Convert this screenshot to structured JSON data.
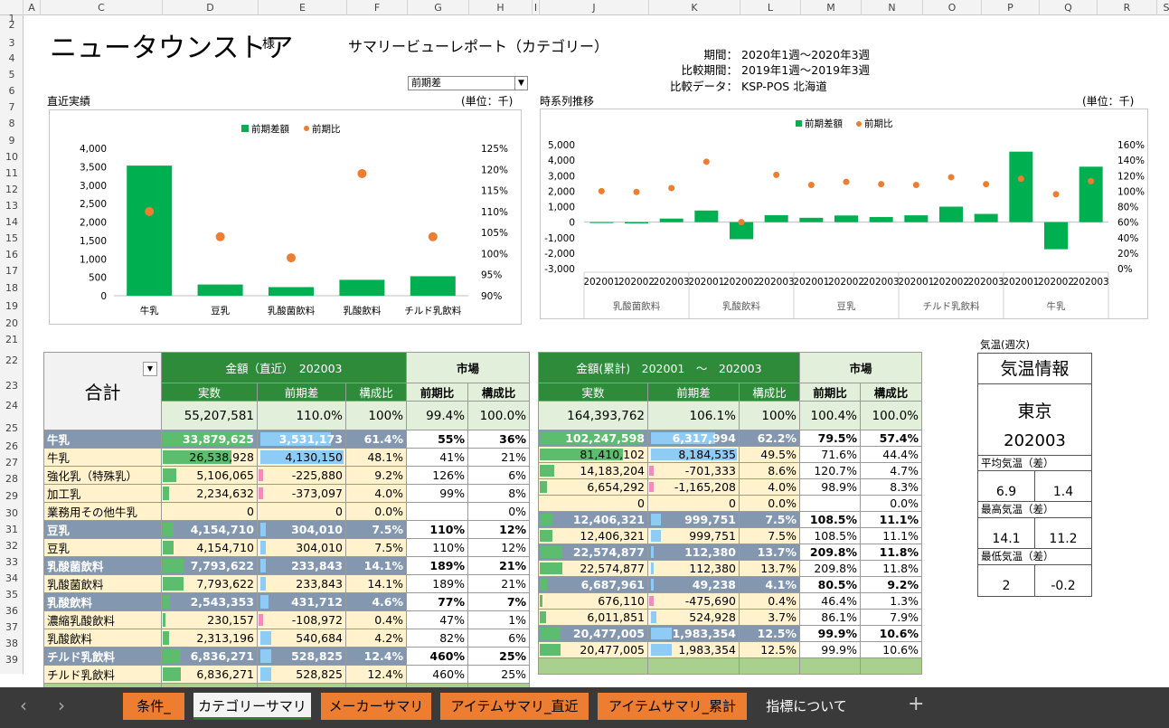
{
  "columns": [
    "A",
    "C",
    "D",
    "E",
    "F",
    "G",
    "H",
    "I",
    "J",
    "K",
    "L",
    "M",
    "N",
    "O",
    "P",
    "Q",
    "R",
    "S"
  ],
  "rows": [
    "1",
    "2",
    "3",
    "4",
    "5",
    "6",
    "7",
    "8",
    "9",
    "10",
    "11",
    "12",
    "13",
    "14",
    "15",
    "16",
    "17",
    "18",
    "19",
    "20",
    "21",
    "22",
    "23",
    "24",
    "25",
    "26",
    "27",
    "28",
    "29",
    "30",
    "31",
    "32",
    "33",
    "34",
    "35",
    "36",
    "37",
    "38",
    "39"
  ],
  "header": {
    "store_name": "ニュータウンストア",
    "honorific": "様",
    "report_title": "サマリービューレポート（カテゴリー）",
    "period_label": "期間：",
    "period_value": "2020年1週～2020年3週",
    "compare_period_label": "比較期間：",
    "compare_period_value": "2019年1週～2019年3週",
    "compare_data_label": "比較データ：",
    "compare_data_value": "KSP-POS 北海道",
    "dropdown_value": "前期差"
  },
  "left_chart": {
    "section_label": "直近実績",
    "unit": "(単位：千)",
    "chart_data": {
      "type": "bar",
      "categories": [
        "牛乳",
        "豆乳",
        "乳酸菌飲料",
        "乳酸飲料",
        "チルド乳飲料"
      ],
      "series": [
        {
          "name": "前期差額",
          "values": [
            3531,
            304,
            234,
            432,
            529
          ]
        },
        {
          "name": "前期比",
          "values": [
            110,
            104,
            99,
            119,
            104
          ]
        }
      ],
      "y_left_ticks": [
        "4,000",
        "3,500",
        "3,000",
        "2,500",
        "2,000",
        "1,500",
        "1,000",
        "500",
        "0"
      ],
      "y_right_ticks": [
        "125%",
        "120%",
        "115%",
        "110%",
        "105%",
        "100%",
        "95%",
        "90%"
      ],
      "ylim_left": [
        0,
        4000
      ],
      "ylim_right": [
        90,
        125
      ],
      "colors": {
        "bar": "#00b050",
        "dot": "#ed7d31"
      }
    }
  },
  "right_chart": {
    "section_label": "時系列推移",
    "unit": "(単位：千)",
    "chart_data": {
      "type": "bar",
      "x": [
        "202001",
        "202002",
        "202003",
        "202001",
        "202002",
        "202003",
        "202001",
        "202002",
        "202003",
        "202001",
        "202002",
        "202003",
        "202001",
        "202002",
        "202003"
      ],
      "groups": [
        "乳酸菌飲料",
        "乳酸飲料",
        "豆乳",
        "チルド乳飲料",
        "牛乳"
      ],
      "series": [
        {
          "name": "前期差額",
          "values": [
            -50,
            -80,
            230,
            750,
            -1100,
            450,
            280,
            430,
            330,
            440,
            1000,
            530,
            4550,
            -1750,
            3580
          ]
        },
        {
          "name": "前期比",
          "values": [
            100,
            99,
            104,
            138,
            60,
            121,
            108,
            112,
            109,
            108,
            118,
            109,
            116,
            96,
            113
          ]
        }
      ],
      "y_left_ticks": [
        "5,000",
        "4,000",
        "3,000",
        "2,000",
        "1,000",
        "0",
        "-1,000",
        "-2,000",
        "-3,000"
      ],
      "y_right_ticks": [
        "160%",
        "140%",
        "120%",
        "100%",
        "80%",
        "60%",
        "40%",
        "20%",
        "0%"
      ],
      "ylim_left": [
        -3000,
        5000
      ],
      "ylim_right": [
        0,
        160
      ]
    }
  },
  "table_left": {
    "title_total": "合計",
    "hdr_amount": "金額（直近）　202003",
    "hdr_market": "市場",
    "cols": [
      "実数",
      "前期差",
      "構成比",
      "前期比",
      "構成比"
    ],
    "total": [
      "55,207,581",
      "110.0%",
      "100%",
      "99.4%",
      "100.0%"
    ]
  },
  "table_right": {
    "hdr_amount": "金額(累計)　202001　～　202003",
    "hdr_market": "市場",
    "cols": [
      "実数",
      "前期差",
      "構成比",
      "前期比",
      "構成比"
    ],
    "total": [
      "164,393,762",
      "106.1%",
      "100%",
      "100.4%",
      "100.0%"
    ]
  },
  "rows_data": [
    {
      "type": "cat",
      "name": "牛乳",
      "l": [
        "33,879,625",
        "3,531,173",
        "61.4%",
        "55%",
        "36%"
      ],
      "r": [
        "102,247,598",
        "6,317,994",
        "62.2%",
        "79.5%",
        "57.4%"
      ],
      "bl": 1.0,
      "bdl": 0.85,
      "br": 1.0,
      "bdr": 0.75
    },
    {
      "type": "sub",
      "name": "牛乳",
      "l": [
        "26,538,928",
        "4,130,150",
        "48.1%",
        "41%",
        "21%"
      ],
      "r": [
        "81,410,102",
        "8,184,535",
        "49.5%",
        "71.6%",
        "44.4%"
      ],
      "bl": 0.78,
      "bdl": 1.0,
      "br": 0.8,
      "bdr": 1.0
    },
    {
      "type": "sub",
      "name": "強化乳（特殊乳）",
      "l": [
        "5,106,065",
        "-225,880",
        "9.2%",
        "126%",
        "6%"
      ],
      "r": [
        "14,183,204",
        "-701,333",
        "8.6%",
        "120.7%",
        "4.7%"
      ],
      "bl": 0.15,
      "bdl": -1,
      "br": 0.14,
      "bdr": -1
    },
    {
      "type": "sub",
      "name": "加工乳",
      "l": [
        "2,234,632",
        "-373,097",
        "4.0%",
        "99%",
        "8%"
      ],
      "r": [
        "6,654,292",
        "-1,165,208",
        "4.0%",
        "98.9%",
        "8.3%"
      ],
      "bl": 0.07,
      "bdl": -1,
      "br": 0.07,
      "bdr": -1
    },
    {
      "type": "sub",
      "name": "業務用その他牛乳",
      "l": [
        "0",
        "0",
        "0.0%",
        "",
        "0%"
      ],
      "r": [
        "0",
        "0",
        "0.0%",
        "",
        "0.0%"
      ],
      "bl": 0,
      "bdl": 0,
      "br": 0,
      "bdr": 0
    },
    {
      "type": "cat",
      "name": "豆乳",
      "l": [
        "4,154,710",
        "304,010",
        "7.5%",
        "110%",
        "12%"
      ],
      "r": [
        "12,406,321",
        "999,751",
        "7.5%",
        "108.5%",
        "11.1%"
      ],
      "bl": 0.12,
      "bdl": 0.07,
      "br": 0.12,
      "bdr": 0.12
    },
    {
      "type": "sub",
      "name": "豆乳",
      "l": [
        "4,154,710",
        "304,010",
        "7.5%",
        "110%",
        "12%"
      ],
      "r": [
        "12,406,321",
        "999,751",
        "7.5%",
        "108.5%",
        "11.1%"
      ],
      "bl": 0.12,
      "bdl": 0.07,
      "br": 0.12,
      "bdr": 0.12
    },
    {
      "type": "cat",
      "name": "乳酸菌飲料",
      "l": [
        "7,793,622",
        "233,843",
        "14.1%",
        "189%",
        "21%"
      ],
      "r": [
        "22,574,877",
        "112,380",
        "13.7%",
        "209.8%",
        "11.8%"
      ],
      "bl": 0.23,
      "bdl": 0.06,
      "br": 0.22,
      "bdr": 0.02
    },
    {
      "type": "sub",
      "name": "乳酸菌飲料",
      "l": [
        "7,793,622",
        "233,843",
        "14.1%",
        "189%",
        "21%"
      ],
      "r": [
        "22,574,877",
        "112,380",
        "13.7%",
        "209.8%",
        "11.8%"
      ],
      "bl": 0.23,
      "bdl": 0.06,
      "br": 0.22,
      "bdr": 0.02
    },
    {
      "type": "cat",
      "name": "乳酸飲料",
      "l": [
        "2,543,353",
        "431,712",
        "4.6%",
        "77%",
        "7%"
      ],
      "r": [
        "6,687,961",
        "49,238",
        "4.1%",
        "80.5%",
        "9.2%"
      ],
      "bl": 0.08,
      "bdl": 0.1,
      "br": 0.07,
      "bdr": 0.01
    },
    {
      "type": "sub",
      "name": "濃縮乳酸飲料",
      "l": [
        "230,157",
        "-108,972",
        "0.4%",
        "47%",
        "1%"
      ],
      "r": [
        "676,110",
        "-475,690",
        "0.4%",
        "46.4%",
        "1.3%"
      ],
      "bl": 0.01,
      "bdl": -1,
      "br": 0.01,
      "bdr": -1
    },
    {
      "type": "sub",
      "name": "乳酸飲料",
      "l": [
        "2,313,196",
        "540,684",
        "4.2%",
        "82%",
        "6%"
      ],
      "r": [
        "6,011,851",
        "524,928",
        "3.7%",
        "86.1%",
        "7.9%"
      ],
      "bl": 0.07,
      "bdl": 0.13,
      "br": 0.06,
      "bdr": 0.06
    },
    {
      "type": "cat",
      "name": "チルド乳飲料",
      "l": [
        "6,836,271",
        "528,825",
        "12.4%",
        "460%",
        "25%"
      ],
      "r": [
        "20,477,005",
        "1,983,354",
        "12.5%",
        "99.9%",
        "10.6%"
      ],
      "bl": 0.2,
      "bdl": 0.13,
      "br": 0.2,
      "bdr": 0.24
    },
    {
      "type": "sub",
      "name": "チルド乳飲料",
      "l": [
        "6,836,271",
        "528,825",
        "12.4%",
        "460%",
        "25%"
      ],
      "r": [
        "20,477,005",
        "1,983,354",
        "12.5%",
        "99.9%",
        "10.6%"
      ],
      "bl": 0.2,
      "bdl": 0.13,
      "br": 0.2,
      "bdr": 0.24
    }
  ],
  "weather": {
    "section_label": "気温(週次)",
    "title": "気温情報",
    "city": "東京",
    "week": "202003",
    "avg_label": "平均気温（差）",
    "avg": [
      "6.9",
      "1.4"
    ],
    "max_label": "最高気温（差）",
    "max": [
      "14.1",
      "11.2"
    ],
    "min_label": "最低気温（差）",
    "min": [
      "2",
      "-0.2"
    ]
  },
  "tabs": [
    "条件_",
    "カテゴリーサマリ",
    "メーカーサマリ",
    "アイテムサマリ_直近",
    "アイテムサマリ_累計",
    "指標について"
  ],
  "tab_nav": {
    "prev": "‹",
    "next": "›",
    "add": "+"
  }
}
